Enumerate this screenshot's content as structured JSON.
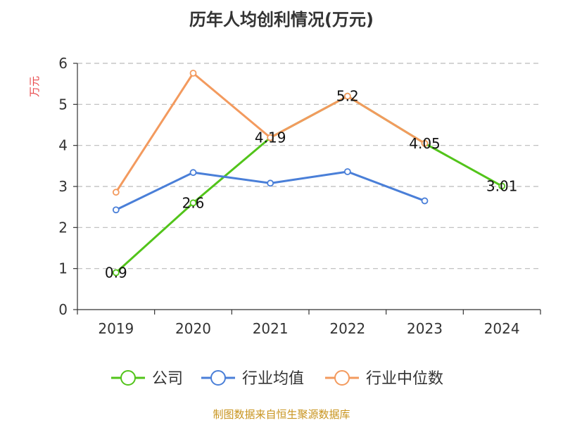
{
  "title": "历年人均创利情况(万元)",
  "source": "制图数据来自恒生聚源数据库",
  "colors": {
    "公司": "#52c41a",
    "行业均值": "#4a7fd8",
    "行业中位数": "#f39a5e",
    "grid": "#bbbbbb",
    "axis": "#333333"
  },
  "chart_data": {
    "type": "line",
    "title": "历年人均创利情况(万元)",
    "xlabel": "",
    "ylabel": "万元",
    "categories": [
      "2019",
      "2020",
      "2021",
      "2022",
      "2023",
      "2024"
    ],
    "ylim": [
      0,
      6
    ],
    "yticks": [
      0,
      1,
      2,
      3,
      4,
      5,
      6
    ],
    "grid": true,
    "legend_position": "bottom",
    "series": [
      {
        "name": "公司",
        "values": [
          0.9,
          2.6,
          4.19,
          5.2,
          4.05,
          3.01
        ],
        "data_labels": [
          "0.9",
          "2.6",
          "4.19",
          "5.2",
          "4.05",
          "3.01"
        ]
      },
      {
        "name": "行业均值",
        "values": [
          2.43,
          3.34,
          3.08,
          3.36,
          2.65,
          null
        ]
      },
      {
        "name": "行业中位数",
        "values": [
          2.86,
          5.76,
          4.19,
          5.2,
          4.05,
          null
        ]
      }
    ]
  }
}
